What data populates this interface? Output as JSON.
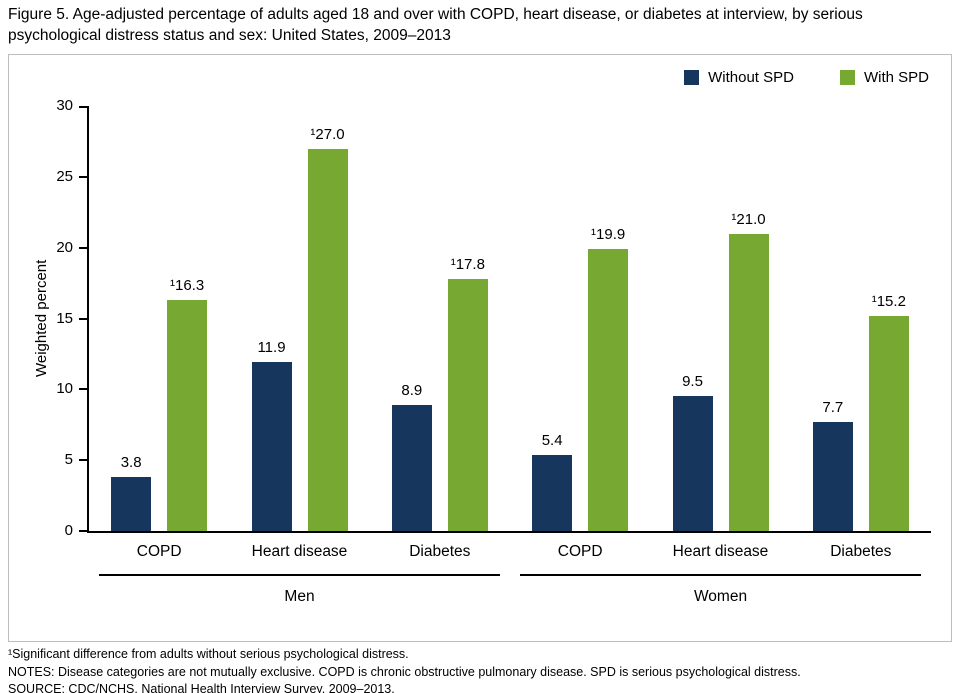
{
  "title": "Figure 5. Age-adjusted percentage of adults aged 18 and over with COPD, heart disease, or diabetes at interview, by serious psychological distress status and sex: United States, 2009–2013",
  "footnotes": [
    "¹Significant difference from adults without serious psychological distress.",
    "NOTES: Disease categories are not mutually exclusive. COPD is chronic obstructive pulmonary disease. SPD is serious psychological distress.",
    "SOURCE: CDC/NCHS, National Health Interview Survey, 2009–2013."
  ],
  "chart_data": {
    "type": "bar",
    "title": "",
    "xlabel": "",
    "ylabel": "Weighted percent",
    "ylim": [
      0,
      30
    ],
    "yticks": [
      0,
      5,
      10,
      15,
      20,
      25,
      30
    ],
    "grid": false,
    "legend_position": "top-right",
    "legend": [
      {
        "name": "Without SPD",
        "color": "#17365d"
      },
      {
        "name": "With SPD",
        "color": "#77a832"
      }
    ],
    "sections": [
      {
        "label": "Men",
        "categories": [
          "COPD",
          "Heart disease",
          "Diabetes"
        ],
        "series": [
          {
            "name": "Without SPD",
            "values": [
              3.8,
              11.9,
              8.9
            ],
            "labels": [
              "3.8",
              "11.9",
              "8.9"
            ]
          },
          {
            "name": "With SPD",
            "values": [
              16.3,
              27.0,
              17.8
            ],
            "labels": [
              "¹16.3",
              "¹27.0",
              "¹17.8"
            ]
          }
        ]
      },
      {
        "label": "Women",
        "categories": [
          "COPD",
          "Heart disease",
          "Diabetes"
        ],
        "series": [
          {
            "name": "Without SPD",
            "values": [
              5.4,
              9.5,
              7.7
            ],
            "labels": [
              "5.4",
              "9.5",
              "7.7"
            ]
          },
          {
            "name": "With SPD",
            "values": [
              19.9,
              21.0,
              15.2
            ],
            "labels": [
              "¹19.9",
              "¹21.0",
              "¹15.2"
            ]
          }
        ]
      }
    ]
  }
}
